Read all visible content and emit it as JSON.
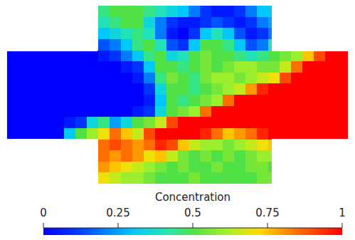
{
  "chart_data": {
    "type": "heatmap",
    "cells": [
      [
        null,
        null,
        null,
        null,
        null,
        null,
        null,
        null,
        0.45,
        0.5,
        0.5,
        0.5,
        0.45,
        0.4,
        0.35,
        0.3,
        0.2,
        0.1,
        0.05,
        0.05,
        0.1,
        0.2,
        0.3,
        0.3,
        null,
        null,
        null,
        null,
        null,
        null
      ],
      [
        null,
        null,
        null,
        null,
        null,
        null,
        null,
        null,
        0.4,
        0.45,
        0.5,
        0.5,
        0.35,
        0.2,
        0.1,
        0.05,
        0.05,
        0.1,
        0.15,
        0.1,
        0.05,
        0.1,
        0.2,
        0.25,
        null,
        null,
        null,
        null,
        null,
        null
      ],
      [
        null,
        null,
        null,
        null,
        null,
        null,
        null,
        null,
        0.3,
        0.35,
        0.4,
        0.45,
        0.4,
        0.2,
        0.05,
        0,
        0.1,
        0.3,
        0.4,
        0.3,
        0.15,
        0.05,
        0.1,
        0.2,
        null,
        null,
        null,
        null,
        null,
        null
      ],
      [
        null,
        null,
        null,
        null,
        null,
        null,
        null,
        null,
        0.15,
        0.2,
        0.3,
        0.45,
        0.5,
        0.4,
        0.15,
        0.1,
        0.3,
        0.5,
        0.5,
        0.45,
        0.3,
        0.15,
        0.2,
        0.4,
        null,
        null,
        null,
        null,
        null,
        null
      ],
      [
        0,
        0,
        0,
        0,
        0,
        0,
        0,
        0,
        0.05,
        0.1,
        0.2,
        0.3,
        0.45,
        0.5,
        0.35,
        0.4,
        0.5,
        0.55,
        0.5,
        0.5,
        0.45,
        0.4,
        0.45,
        0.5,
        0.55,
        0.6,
        0.75,
        0.9,
        1,
        1
      ],
      [
        0,
        0,
        0,
        0,
        0,
        0,
        0,
        0,
        0,
        0,
        0.05,
        0.1,
        0.3,
        0.5,
        0.5,
        0.45,
        0.5,
        0.55,
        0.5,
        0.55,
        0.6,
        0.6,
        0.55,
        0.55,
        0.65,
        0.85,
        1,
        1,
        1,
        1
      ],
      [
        0,
        0,
        0,
        0,
        0,
        0,
        0,
        0,
        0,
        0,
        0,
        0.05,
        0.2,
        0.45,
        0.55,
        0.5,
        0.45,
        0.55,
        0.6,
        0.6,
        0.55,
        0.6,
        0.65,
        0.7,
        0.9,
        1,
        1,
        1,
        1,
        1
      ],
      [
        0,
        0,
        0,
        0,
        0,
        0,
        0,
        0,
        0,
        0,
        0,
        0,
        0.1,
        0.35,
        0.5,
        0.5,
        0.45,
        0.5,
        0.55,
        0.6,
        0.65,
        0.8,
        0.95,
        1,
        1,
        1,
        1,
        1,
        1,
        1
      ],
      [
        0,
        0,
        0,
        0,
        0,
        0,
        0,
        0,
        0,
        0,
        0,
        0,
        0.05,
        0.3,
        0.5,
        0.45,
        0.5,
        0.55,
        0.6,
        0.85,
        1,
        1,
        1,
        1,
        1,
        1,
        1,
        1,
        1,
        1
      ],
      [
        0,
        0,
        0,
        0,
        0,
        0,
        0,
        0,
        0,
        0,
        0,
        0.05,
        0.1,
        0.35,
        0.5,
        0.55,
        0.6,
        0.85,
        1,
        1,
        1,
        1,
        1,
        1,
        1,
        1,
        1,
        1,
        1,
        1
      ],
      [
        0,
        0,
        0,
        0,
        0,
        0.05,
        0.1,
        0.35,
        0.45,
        0.25,
        0.35,
        0.5,
        0.55,
        0.65,
        0.9,
        1,
        1,
        1,
        1,
        1,
        1,
        1,
        1,
        1,
        1,
        1,
        1,
        1,
        1,
        1
      ],
      [
        0,
        0,
        0,
        0,
        0,
        0.3,
        0.5,
        0.6,
        0.7,
        0.85,
        0.75,
        0.65,
        0.9,
        1,
        1,
        1,
        1,
        0.95,
        0.85,
        0.75,
        0.8,
        0.85,
        0.95,
        1,
        1,
        1,
        1,
        1,
        1,
        1
      ],
      [
        null,
        null,
        null,
        null,
        null,
        null,
        null,
        null,
        0.85,
        0.9,
        0.85,
        0.8,
        0.85,
        0.95,
        0.9,
        0.75,
        0.65,
        0.6,
        0.6,
        0.55,
        0.6,
        0.65,
        0.7,
        0.75,
        null,
        null,
        null,
        null,
        null,
        null
      ],
      [
        null,
        null,
        null,
        null,
        null,
        null,
        null,
        null,
        0.85,
        0.8,
        0.85,
        0.8,
        0.7,
        0.75,
        0.65,
        0.55,
        0.5,
        0.55,
        0.5,
        0.55,
        0.5,
        0.55,
        0.6,
        0.6,
        null,
        null,
        null,
        null,
        null,
        null
      ],
      [
        null,
        null,
        null,
        null,
        null,
        null,
        null,
        null,
        0.8,
        0.75,
        0.7,
        0.65,
        0.6,
        0.55,
        0.5,
        0.55,
        0.5,
        0.5,
        0.55,
        0.5,
        0.5,
        0.55,
        0.55,
        0.5,
        null,
        null,
        null,
        null,
        null,
        null
      ],
      [
        null,
        null,
        null,
        null,
        null,
        null,
        null,
        null,
        0.7,
        0.65,
        0.6,
        0.6,
        0.55,
        0.5,
        0.5,
        0.5,
        0.55,
        0.5,
        0.5,
        0.5,
        0.5,
        0.5,
        0.55,
        0.55,
        null,
        null,
        null,
        null,
        null,
        null
      ]
    ],
    "colorbar": {
      "title": "Concentration",
      "range": [
        0,
        1
      ],
      "ticks": [
        0,
        0.25,
        0.5,
        0.75,
        1
      ]
    }
  }
}
